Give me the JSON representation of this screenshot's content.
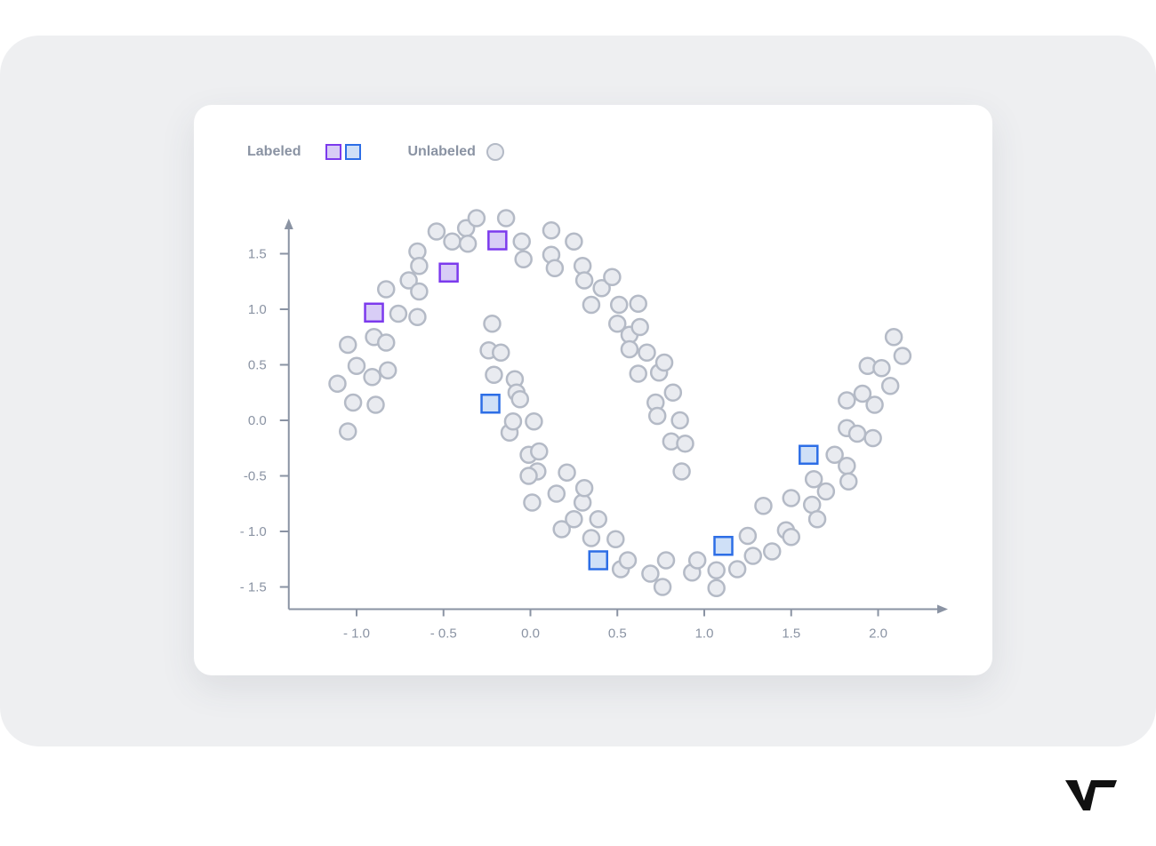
{
  "legend": {
    "labeled": "Labeled",
    "unlabeled": "Unlabeled",
    "labeled_colors": [
      "#7c3aed",
      "#2d6ee6"
    ],
    "unlabeled_color": "#b4bac6"
  },
  "brand": {
    "logo": "V7"
  },
  "chart_data": {
    "type": "scatter",
    "title": "",
    "xlabel": "",
    "ylabel": "",
    "xlim": [
      -1.4,
      2.4
    ],
    "ylim": [
      -1.75,
      1.85
    ],
    "grid": false,
    "legend_position": "top-left",
    "x_ticks": [
      -1.0,
      -0.5,
      0.0,
      0.5,
      1.0,
      1.5,
      2.0
    ],
    "x_tick_labels": [
      "- 1.0",
      "- 0.5",
      "0.0",
      "0.5",
      "1.0",
      "1.5",
      "2.0"
    ],
    "y_ticks": [
      1.5,
      1.0,
      0.5,
      0.0,
      -0.5,
      -1.0,
      -1.5
    ],
    "y_tick_labels": [
      "1.5",
      "1.0",
      "0.5",
      "0.0",
      "-0.5",
      "- 1.0",
      "- 1.5"
    ],
    "series": [
      {
        "name": "Labeled",
        "marker": "square",
        "color": "#7c3aed",
        "fill": "#d8cdf6",
        "points": [
          [
            -0.9,
            0.97
          ],
          [
            -0.47,
            1.33
          ],
          [
            -0.19,
            1.62
          ]
        ]
      },
      {
        "name": "Labeled",
        "marker": "square",
        "color": "#2d6ee6",
        "fill": "#cfe0f7",
        "points": [
          [
            -0.23,
            0.15
          ],
          [
            0.39,
            -1.26
          ],
          [
            1.11,
            -1.13
          ],
          [
            1.6,
            -0.31
          ]
        ]
      },
      {
        "name": "Unlabeled",
        "marker": "circle",
        "color": "#b4bac6",
        "fill": "#e9ebf0",
        "points": [
          [
            -1.11,
            0.33
          ],
          [
            -1.05,
            0.68
          ],
          [
            -1.0,
            0.49
          ],
          [
            -1.02,
            0.16
          ],
          [
            -1.05,
            -0.1
          ],
          [
            -0.9,
            0.75
          ],
          [
            -0.91,
            0.39
          ],
          [
            -0.89,
            0.14
          ],
          [
            -0.83,
            1.18
          ],
          [
            -0.83,
            0.7
          ],
          [
            -0.82,
            0.45
          ],
          [
            -0.76,
            0.96
          ],
          [
            -0.7,
            1.26
          ],
          [
            -0.65,
            1.52
          ],
          [
            -0.64,
            1.39
          ],
          [
            -0.64,
            1.16
          ],
          [
            -0.65,
            0.93
          ],
          [
            -0.54,
            1.7
          ],
          [
            -0.45,
            1.61
          ],
          [
            -0.37,
            1.73
          ],
          [
            -0.36,
            1.59
          ],
          [
            -0.31,
            1.82
          ],
          [
            -0.14,
            1.82
          ],
          [
            -0.05,
            1.61
          ],
          [
            -0.04,
            1.45
          ],
          [
            0.12,
            1.71
          ],
          [
            0.12,
            1.49
          ],
          [
            0.14,
            1.37
          ],
          [
            0.25,
            1.61
          ],
          [
            0.3,
            1.39
          ],
          [
            0.31,
            1.26
          ],
          [
            0.35,
            1.04
          ],
          [
            0.41,
            1.19
          ],
          [
            0.47,
            1.29
          ],
          [
            0.5,
            0.87
          ],
          [
            0.51,
            1.04
          ],
          [
            0.57,
            0.77
          ],
          [
            0.57,
            0.64
          ],
          [
            0.62,
            1.05
          ],
          [
            0.63,
            0.84
          ],
          [
            0.62,
            0.42
          ],
          [
            0.67,
            0.61
          ],
          [
            0.72,
            0.16
          ],
          [
            0.73,
            0.04
          ],
          [
            0.74,
            0.43
          ],
          [
            0.77,
            0.52
          ],
          [
            0.82,
            0.25
          ],
          [
            0.81,
            -0.19
          ],
          [
            0.86,
            0.0
          ],
          [
            0.89,
            -0.21
          ],
          [
            0.87,
            -0.46
          ],
          [
            -0.22,
            0.87
          ],
          [
            -0.24,
            0.63
          ],
          [
            -0.17,
            0.61
          ],
          [
            -0.21,
            0.41
          ],
          [
            -0.09,
            0.37
          ],
          [
            -0.08,
            0.25
          ],
          [
            -0.06,
            0.19
          ],
          [
            -0.12,
            -0.11
          ],
          [
            -0.1,
            -0.01
          ],
          [
            0.02,
            -0.01
          ],
          [
            -0.01,
            -0.31
          ],
          [
            0.05,
            -0.28
          ],
          [
            0.04,
            -0.46
          ],
          [
            -0.01,
            -0.5
          ],
          [
            0.15,
            -0.66
          ],
          [
            0.21,
            -0.47
          ],
          [
            0.01,
            -0.74
          ],
          [
            0.18,
            -0.98
          ],
          [
            0.25,
            -0.89
          ],
          [
            0.3,
            -0.74
          ],
          [
            0.31,
            -0.61
          ],
          [
            0.35,
            -1.06
          ],
          [
            0.39,
            -0.89
          ],
          [
            0.49,
            -1.07
          ],
          [
            0.52,
            -1.34
          ],
          [
            0.56,
            -1.26
          ],
          [
            0.69,
            -1.38
          ],
          [
            0.76,
            -1.5
          ],
          [
            0.78,
            -1.26
          ],
          [
            0.93,
            -1.37
          ],
          [
            0.96,
            -1.26
          ],
          [
            1.07,
            -1.35
          ],
          [
            1.07,
            -1.51
          ],
          [
            1.19,
            -1.34
          ],
          [
            1.25,
            -1.04
          ],
          [
            1.28,
            -1.22
          ],
          [
            1.34,
            -0.77
          ],
          [
            1.39,
            -1.18
          ],
          [
            1.47,
            -0.99
          ],
          [
            1.5,
            -0.7
          ],
          [
            1.5,
            -1.05
          ],
          [
            1.63,
            -0.53
          ],
          [
            1.62,
            -0.76
          ],
          [
            1.65,
            -0.89
          ],
          [
            1.7,
            -0.64
          ],
          [
            1.75,
            -0.31
          ],
          [
            1.82,
            -0.41
          ],
          [
            1.83,
            -0.55
          ],
          [
            1.82,
            -0.07
          ],
          [
            1.82,
            0.18
          ],
          [
            1.88,
            -0.12
          ],
          [
            1.91,
            0.24
          ],
          [
            1.97,
            -0.16
          ],
          [
            1.94,
            0.49
          ],
          [
            1.98,
            0.14
          ],
          [
            2.02,
            0.47
          ],
          [
            2.07,
            0.31
          ],
          [
            2.09,
            0.75
          ],
          [
            2.14,
            0.58
          ]
        ]
      }
    ]
  }
}
